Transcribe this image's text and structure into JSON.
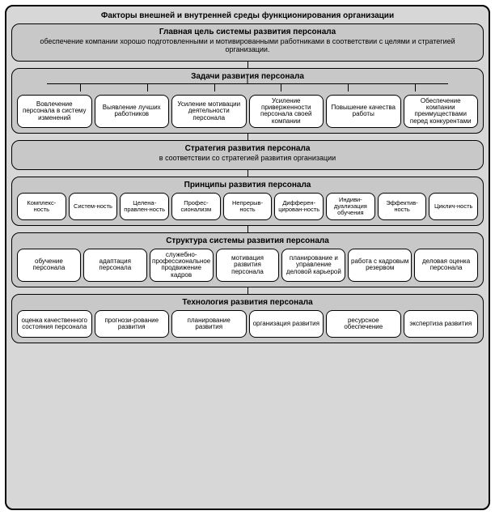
{
  "type": "flowchart",
  "layout": "vertical-stack",
  "background_color": "#ffffff",
  "outer_box": {
    "title": "Факторы внешней и внутренней среды функционирования организации",
    "bg_color": "#d7d7d7",
    "border_color": "#000000",
    "border_radius": 10
  },
  "block_style": {
    "bg_color": "#c8c8c8",
    "border_color": "#000000",
    "border_radius": 10
  },
  "item_style": {
    "bg_color": "#ffffff",
    "border_color": "#000000",
    "border_radius": 8,
    "fontsize": 8
  },
  "title_fontsize": 10,
  "subtitle_fontsize": 9,
  "blocks": [
    {
      "key": "goal",
      "title": "Главная цель системы развития персонала",
      "subtitle": "обеспечение компании хорошо подготовленными и мотивированными работниками в соответствии с целями и стратегией организации.",
      "items": []
    },
    {
      "key": "tasks",
      "title": "Задачи развития персонала",
      "subtitle": "",
      "bracket": true,
      "items": [
        "Вовлечение персонала в систему изменений",
        "Выявление лучших работников",
        "Усиление мотивации деятельности персонала",
        "Усиление приверженности персонала своей компании",
        "Повышение качества работы",
        "Обеспечение компании преимуществами перед конкурентами"
      ]
    },
    {
      "key": "strategy",
      "title": "Стратегия развития персонала",
      "subtitle": "в соответствии со стратегией развития организации",
      "items": []
    },
    {
      "key": "principles",
      "title": "Принципы развития персонала",
      "subtitle": "",
      "items": [
        "Комплекс-ность",
        "Систем-ность",
        "Целена-правлен-ность",
        "Профес-сионализм",
        "Непрерыв-ность",
        "Дифферен-цирован-ность",
        "Индиви-дуализация обучения",
        "Эффектив-ность",
        "Циклич-ность"
      ]
    },
    {
      "key": "structure",
      "title": "Структура системы развития персонала",
      "subtitle": "",
      "items": [
        "обучение персонала",
        "адаптация персонала",
        "служебно-профессиональное продвижение кадров",
        "мотивация развития персонала",
        "планирование и управление деловой карьерой",
        "работа с кадровым резервом",
        "деловая оценка персонала"
      ]
    },
    {
      "key": "technology",
      "title": "Технология развития персонала",
      "subtitle": "",
      "items": [
        "оценка качественного состояния персонала",
        "прогнози-рование развития",
        "планирование развития",
        "организация развития",
        "ресурсное обеспечение",
        "экспертиза развития"
      ]
    }
  ]
}
